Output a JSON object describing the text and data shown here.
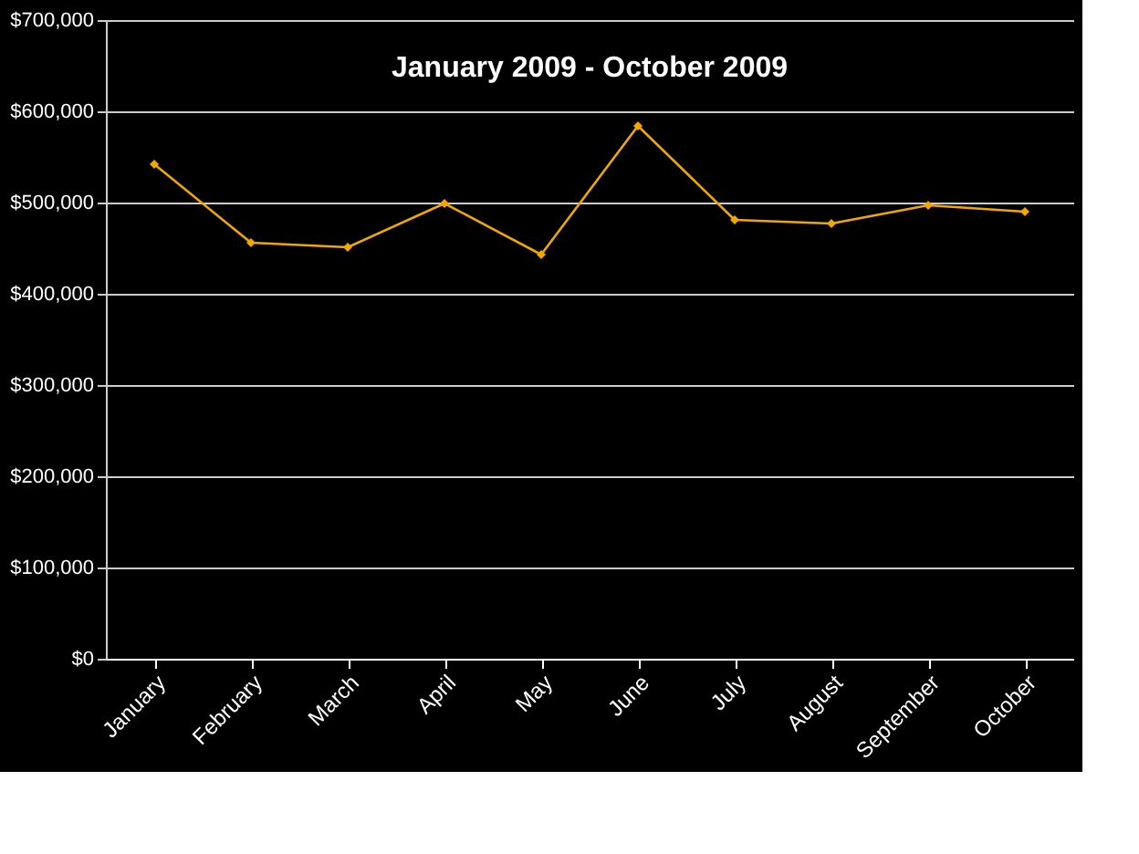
{
  "chart_data": {
    "type": "line",
    "title": "January 2009 - October 2009",
    "categories": [
      "January",
      "February",
      "March",
      "April",
      "May",
      "June",
      "July",
      "August",
      "September",
      "October"
    ],
    "series": [
      {
        "color": "#f0a800",
        "values": [
          542000,
          456000,
          451000,
          499000,
          443000,
          584000,
          481000,
          477000,
          497000,
          490000
        ]
      }
    ],
    "ylim": [
      0,
      700000
    ],
    "yticks": [
      {
        "value": 0,
        "label": "$0"
      },
      {
        "value": 100000,
        "label": "$100,000"
      },
      {
        "value": 200000,
        "label": "$200,000"
      },
      {
        "value": 300000,
        "label": "$300,000"
      },
      {
        "value": 400000,
        "label": "$400,000"
      },
      {
        "value": 500000,
        "label": "$500,000"
      },
      {
        "value": 600000,
        "label": "$600,000"
      },
      {
        "value": 700000,
        "label": "$700,000"
      }
    ],
    "grid": "y",
    "marker": "diamond",
    "line_style": "solid"
  }
}
